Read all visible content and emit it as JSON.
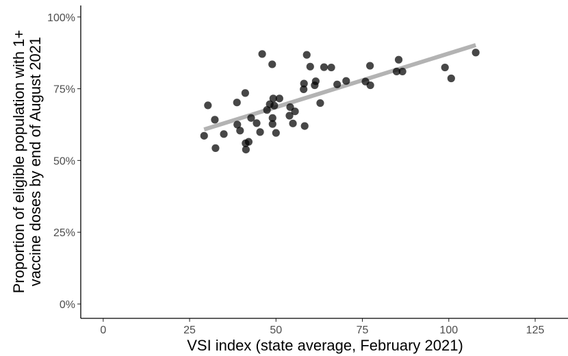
{
  "chart_data": {
    "type": "scatter",
    "xlabel": "VSI index (state average, February 2021)",
    "ylabel_lines": [
      "Proportion of eligible population with 1+",
      "vaccine doses by end of August 2021"
    ],
    "xlim": [
      -6.5,
      134.5
    ],
    "ylim": [
      -0.05,
      1.04
    ],
    "x_ticks": [
      0,
      25,
      50,
      75,
      100,
      125
    ],
    "x_tick_labels": [
      "0",
      "25",
      "50",
      "75",
      "100",
      "125"
    ],
    "y_ticks": [
      0,
      0.25,
      0.5,
      0.75,
      1.0
    ],
    "y_tick_labels": [
      "0%",
      "25%",
      "50%",
      "75%",
      "100%"
    ],
    "grid": false,
    "points": [
      {
        "x": 29.2,
        "y": 0.586
      },
      {
        "x": 30.3,
        "y": 0.692
      },
      {
        "x": 32.3,
        "y": 0.642
      },
      {
        "x": 32.5,
        "y": 0.543
      },
      {
        "x": 34.9,
        "y": 0.592
      },
      {
        "x": 38.7,
        "y": 0.702
      },
      {
        "x": 38.8,
        "y": 0.625
      },
      {
        "x": 39.6,
        "y": 0.604
      },
      {
        "x": 41.1,
        "y": 0.735
      },
      {
        "x": 41.2,
        "y": 0.56
      },
      {
        "x": 41.3,
        "y": 0.538
      },
      {
        "x": 42.1,
        "y": 0.565
      },
      {
        "x": 42.8,
        "y": 0.648
      },
      {
        "x": 44.4,
        "y": 0.63
      },
      {
        "x": 45.4,
        "y": 0.599
      },
      {
        "x": 46.0,
        "y": 0.871
      },
      {
        "x": 47.4,
        "y": 0.676
      },
      {
        "x": 48.2,
        "y": 0.696
      },
      {
        "x": 48.9,
        "y": 0.835
      },
      {
        "x": 49.0,
        "y": 0.648
      },
      {
        "x": 49.0,
        "y": 0.627
      },
      {
        "x": 49.2,
        "y": 0.716
      },
      {
        "x": 49.5,
        "y": 0.691
      },
      {
        "x": 50.0,
        "y": 0.596
      },
      {
        "x": 51.0,
        "y": 0.716
      },
      {
        "x": 53.9,
        "y": 0.656
      },
      {
        "x": 54.1,
        "y": 0.686
      },
      {
        "x": 54.9,
        "y": 0.629
      },
      {
        "x": 55.5,
        "y": 0.671
      },
      {
        "x": 58.0,
        "y": 0.748
      },
      {
        "x": 58.1,
        "y": 0.768
      },
      {
        "x": 58.3,
        "y": 0.62
      },
      {
        "x": 58.9,
        "y": 0.868
      },
      {
        "x": 59.9,
        "y": 0.827
      },
      {
        "x": 61.2,
        "y": 0.762
      },
      {
        "x": 61.5,
        "y": 0.776
      },
      {
        "x": 62.8,
        "y": 0.7
      },
      {
        "x": 63.9,
        "y": 0.825
      },
      {
        "x": 66.0,
        "y": 0.824
      },
      {
        "x": 67.7,
        "y": 0.765
      },
      {
        "x": 70.3,
        "y": 0.777
      },
      {
        "x": 75.9,
        "y": 0.775
      },
      {
        "x": 77.2,
        "y": 0.83
      },
      {
        "x": 77.3,
        "y": 0.762
      },
      {
        "x": 84.9,
        "y": 0.81
      },
      {
        "x": 85.5,
        "y": 0.851
      },
      {
        "x": 86.6,
        "y": 0.81
      },
      {
        "x": 98.9,
        "y": 0.824
      },
      {
        "x": 100.7,
        "y": 0.786
      },
      {
        "x": 107.8,
        "y": 0.876
      }
    ],
    "fit_line": {
      "x": [
        29.2,
        107.8
      ],
      "y": [
        0.608,
        0.902
      ],
      "color": "#b3b3b3"
    },
    "point_color": "#000000"
  }
}
